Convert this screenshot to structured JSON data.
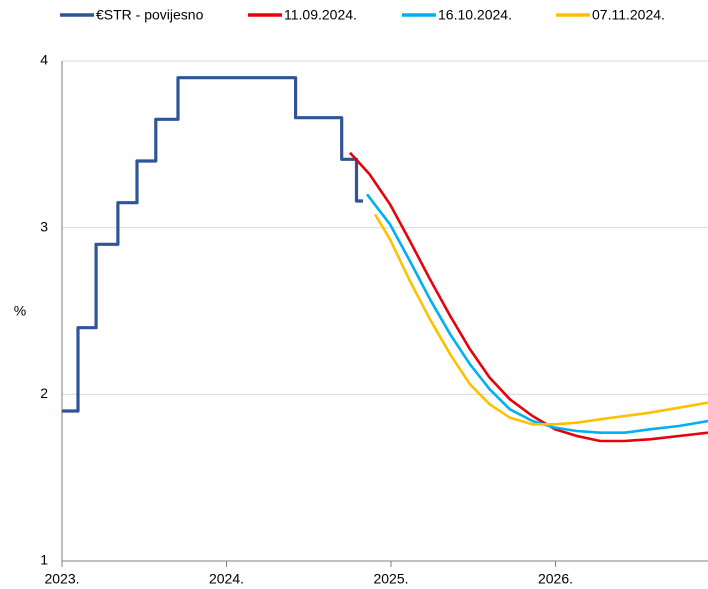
{
  "chart_data": {
    "type": "line",
    "ylabel": "%",
    "xlim": [
      2023,
      2026.927
    ],
    "xticks": [
      {
        "value": 2023,
        "label": "2023."
      },
      {
        "value": 2024,
        "label": "2024."
      },
      {
        "value": 2025,
        "label": "2025."
      },
      {
        "value": 2026,
        "label": "2026."
      }
    ],
    "ylim": [
      1,
      4
    ],
    "yticks": [
      1,
      2,
      3,
      4
    ],
    "grid": true,
    "legend": "top",
    "series": [
      {
        "name": "€STR - povijesno",
        "color": "#2f5597",
        "width": 3.2,
        "x": [
          2023.0,
          2023.097,
          2023.097,
          2023.207,
          2023.207,
          2023.34,
          2023.34,
          2023.456,
          2023.456,
          2023.57,
          2023.57,
          2023.705,
          2023.705,
          2024.42,
          2024.42,
          2024.7,
          2024.7,
          2024.79,
          2024.79,
          2024.83
        ],
        "values": [
          1.9,
          1.9,
          2.4,
          2.4,
          2.9,
          2.9,
          3.15,
          3.15,
          3.4,
          3.4,
          3.65,
          3.65,
          3.9,
          3.9,
          3.66,
          3.66,
          3.41,
          3.41,
          3.16,
          3.16
        ]
      },
      {
        "name": "11.09.2024.",
        "color": "#e8000b",
        "width": 2.6,
        "x": [
          2024.751,
          2024.87,
          2024.994,
          2025.115,
          2025.237,
          2025.36,
          2025.48,
          2025.6,
          2025.723,
          2025.86,
          2025.997,
          2026.13,
          2026.271,
          2026.42,
          2026.574,
          2026.75,
          2026.927
        ],
        "values": [
          3.45,
          3.32,
          3.14,
          2.92,
          2.69,
          2.47,
          2.27,
          2.1,
          1.97,
          1.87,
          1.79,
          1.75,
          1.72,
          1.72,
          1.73,
          1.75,
          1.77
        ]
      },
      {
        "name": "16.10.2024.",
        "color": "#00b0f0",
        "width": 2.6,
        "x": [
          2024.854,
          2024.994,
          2025.115,
          2025.237,
          2025.36,
          2025.48,
          2025.6,
          2025.723,
          2025.86,
          2025.997,
          2026.13,
          2026.271,
          2026.42,
          2026.574,
          2026.75,
          2026.927
        ],
        "values": [
          3.2,
          3.02,
          2.8,
          2.57,
          2.36,
          2.18,
          2.03,
          1.91,
          1.84,
          1.8,
          1.78,
          1.77,
          1.77,
          1.79,
          1.81,
          1.84
        ]
      },
      {
        "name": "07.11.2024.",
        "color": "#ffc000",
        "width": 2.6,
        "x": [
          2024.903,
          2024.994,
          2025.115,
          2025.237,
          2025.36,
          2025.48,
          2025.6,
          2025.723,
          2025.86,
          2025.997,
          2026.13,
          2026.271,
          2026.42,
          2026.574,
          2026.75,
          2026.927
        ],
        "values": [
          3.08,
          2.93,
          2.68,
          2.45,
          2.24,
          2.06,
          1.94,
          1.86,
          1.82,
          1.82,
          1.83,
          1.85,
          1.87,
          1.89,
          1.92,
          1.95
        ]
      }
    ]
  }
}
